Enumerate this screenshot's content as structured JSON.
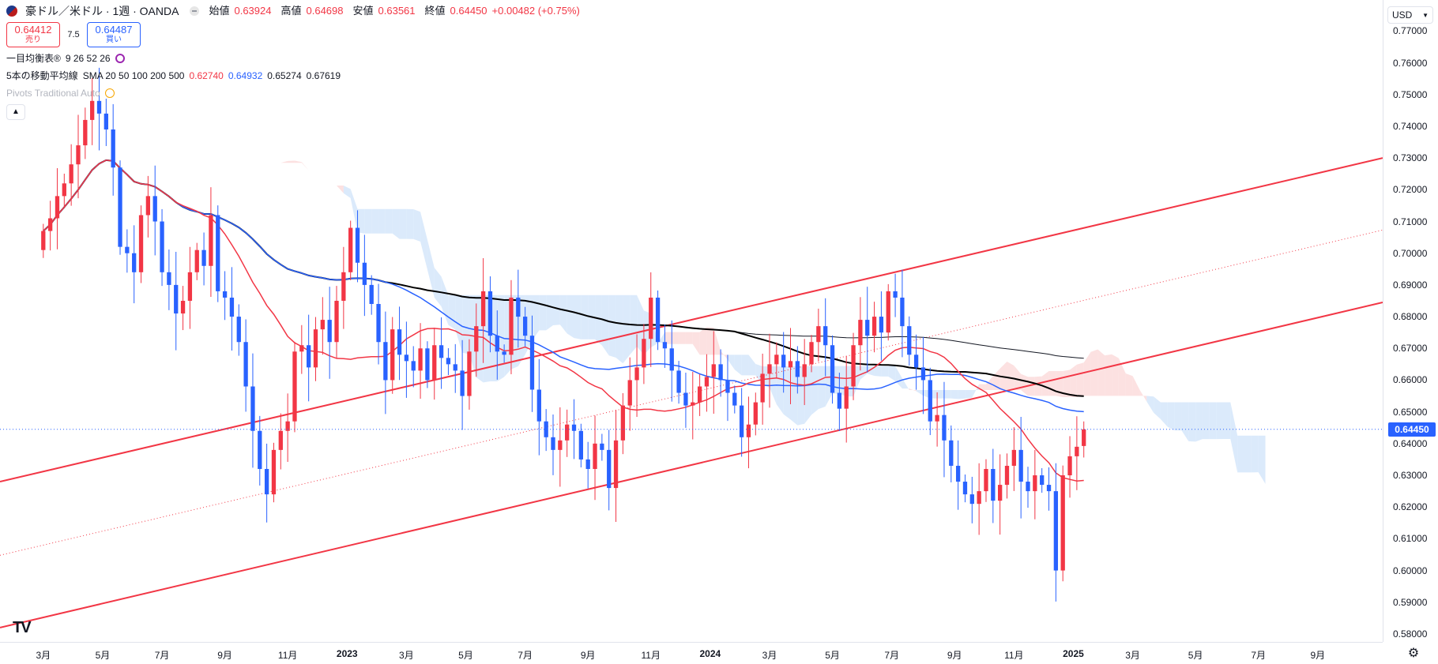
{
  "header": {
    "symbol": "豪ドル／米ドル · 1週 · OANDA",
    "open_label": "始値",
    "open": "0.63924",
    "high_label": "高値",
    "high": "0.64698",
    "low_label": "安値",
    "low": "0.63561",
    "close_label": "終値",
    "close": "0.64450",
    "change": "+0.00482 (+0.75%)"
  },
  "trade": {
    "sell_price": "0.64412",
    "sell_label": "売り",
    "spread": "7.5",
    "buy_price": "0.64487",
    "buy_label": "買い"
  },
  "indicators": {
    "ichimoku_name": "一目均衡表®",
    "ichimoku_params": "9 26 52 26",
    "sma_name": "5本の移動平均線",
    "sma_params": "SMA 20 50 100 200 500",
    "sma_v1": "0.62740",
    "sma_v2": "0.64932",
    "sma_v3": "0.65274",
    "sma_v4": "0.67619",
    "pivots_name": "Pivots Traditional Auto"
  },
  "currency": "USD",
  "last_price_label": "0.64450",
  "colors": {
    "up": "#f23645",
    "down": "#2962ff",
    "sma20": "#f23645",
    "sma50": "#2962ff",
    "sma100": "#000000",
    "sma200": "#131722",
    "cloud": "#cfe3fa",
    "cloud_bear": "#fbd7d7",
    "channel": "#f23645"
  },
  "chart_data": {
    "type": "candlestick",
    "y_ticks": [
      "0.77000",
      "0.76000",
      "0.75000",
      "0.74000",
      "0.73000",
      "0.72000",
      "0.71000",
      "0.70000",
      "0.69000",
      "0.68000",
      "0.67000",
      "0.66000",
      "0.65000",
      "0.64000",
      "0.63000",
      "0.62000",
      "0.61000",
      "0.60000",
      "0.59000",
      "0.58000"
    ],
    "ylim": [
      0.5775,
      0.7798
    ],
    "x_ticks": [
      "3月",
      "5月",
      "7月",
      "9月",
      "11月",
      "2023",
      "3月",
      "5月",
      "7月",
      "9月",
      "11月",
      "2024",
      "3月",
      "5月",
      "7月",
      "9月",
      "11月",
      "2025",
      "3月",
      "5月",
      "7月",
      "9月"
    ],
    "x_tick_weeks": [
      0,
      8.5,
      17,
      26,
      35,
      43.5,
      52,
      60.5,
      69,
      78,
      87,
      95.5,
      104,
      113,
      121.5,
      130.5,
      139,
      147.5,
      156,
      165,
      174,
      182.5
    ],
    "x_range_weeks": [
      -6.2,
      191.8
    ],
    "candles_close": [
      0.707,
      0.711,
      0.718,
      0.722,
      0.728,
      0.734,
      0.742,
      0.748,
      0.744,
      0.739,
      0.727,
      0.702,
      0.7,
      0.694,
      0.712,
      0.718,
      0.71,
      0.694,
      0.69,
      0.681,
      0.685,
      0.694,
      0.701,
      0.696,
      0.712,
      0.688,
      0.686,
      0.68,
      0.672,
      0.658,
      0.644,
      0.632,
      0.624,
      0.638,
      0.644,
      0.647,
      0.669,
      0.671,
      0.664,
      0.676,
      0.679,
      0.672,
      0.685,
      0.694,
      0.708,
      0.697,
      0.69,
      0.684,
      0.672,
      0.66,
      0.676,
      0.668,
      0.666,
      0.663,
      0.67,
      0.66,
      0.671,
      0.667,
      0.665,
      0.663,
      0.655,
      0.669,
      0.677,
      0.688,
      0.674,
      0.669,
      0.668,
      0.686,
      0.68,
      0.674,
      0.657,
      0.647,
      0.642,
      0.638,
      0.641,
      0.646,
      0.644,
      0.635,
      0.632,
      0.64,
      0.638,
      0.626,
      0.641,
      0.652,
      0.66,
      0.664,
      0.673,
      0.686,
      0.672,
      0.67,
      0.663,
      0.656,
      0.652,
      0.653,
      0.658,
      0.661,
      0.665,
      0.66,
      0.656,
      0.652,
      0.642,
      0.646,
      0.653,
      0.662,
      0.665,
      0.668,
      0.664,
      0.666,
      0.661,
      0.665,
      0.672,
      0.677,
      0.671,
      0.656,
      0.651,
      0.658,
      0.671,
      0.679,
      0.674,
      0.68,
      0.675,
      0.688,
      0.686,
      0.677,
      0.668,
      0.664,
      0.66,
      0.647,
      0.649,
      0.641,
      0.633,
      0.628,
      0.624,
      0.621,
      0.625,
      0.632,
      0.622,
      0.627,
      0.633,
      0.638,
      0.628,
      0.625,
      0.63,
      0.627,
      0.625,
      0.6,
      0.63,
      0.636,
      0.639,
      0.6445
    ],
    "sma20_label": "0.62740",
    "sma50_label": "0.64932",
    "sma100_label": "0.65274",
    "sma200_label": "0.67619"
  }
}
